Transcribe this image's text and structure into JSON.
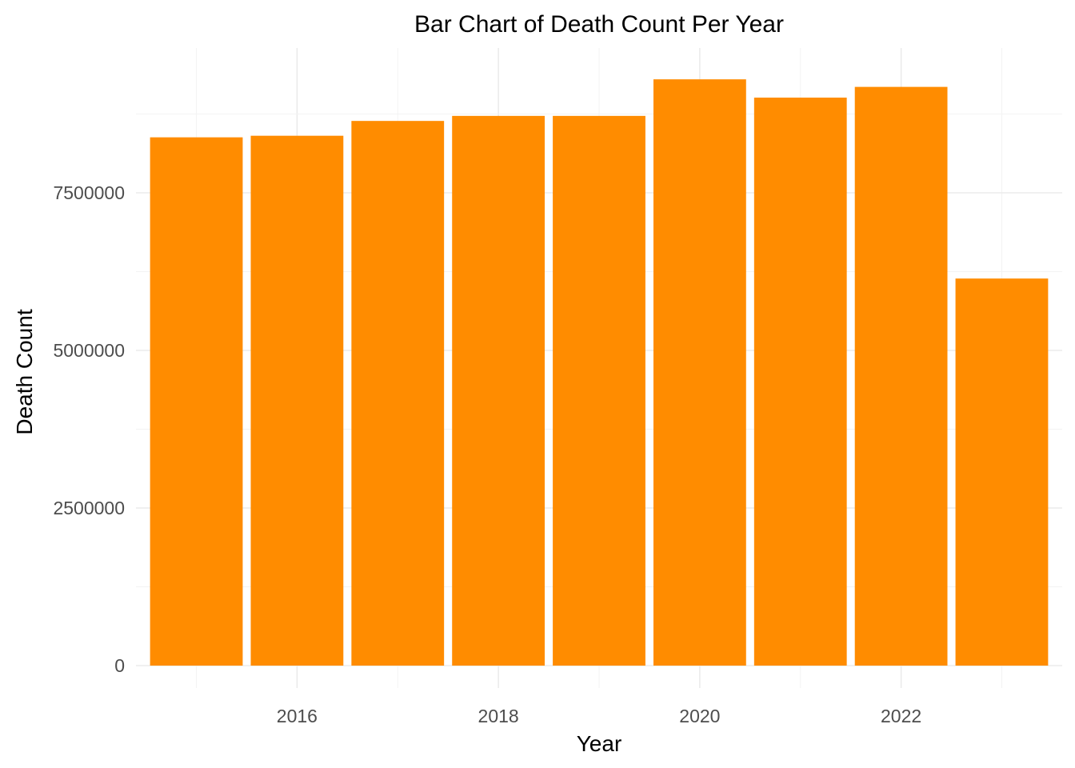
{
  "chart_data": {
    "type": "bar",
    "title": "Bar Chart of Death Count Per Year",
    "xlabel": "Year",
    "ylabel": "Death Count",
    "categories": [
      2015,
      2016,
      2017,
      2018,
      2019,
      2020,
      2021,
      2022,
      2023
    ],
    "values": [
      8380000,
      8405000,
      8640000,
      8720000,
      8720000,
      9300000,
      9010000,
      9180000,
      6140000
    ],
    "x_ticks": [
      2016,
      2018,
      2020,
      2022
    ],
    "x_tick_labels": [
      "2016",
      "2018",
      "2020",
      "2022"
    ],
    "y_ticks": [
      0,
      2500000,
      5000000,
      7500000
    ],
    "y_tick_labels": [
      "0",
      "2500000",
      "5000000",
      "7500000"
    ],
    "xlim": [
      2014.4,
      2023.6
    ],
    "ylim": [
      0,
      9700000
    ],
    "grid": true,
    "legend": "none",
    "bar_color": "#FF8C00"
  }
}
